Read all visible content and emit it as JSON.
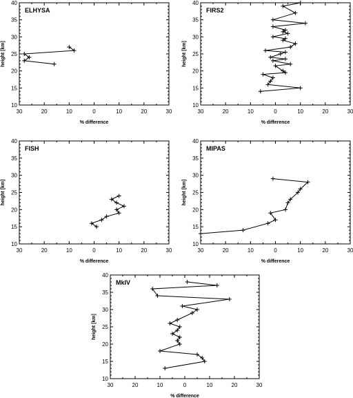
{
  "chart_data": [
    {
      "type": "line",
      "title": "ELHYSA",
      "xlabel": "% difference",
      "ylabel": "height [km]",
      "xlim": [
        -30,
        30
      ],
      "ylim": [
        10,
        40
      ],
      "xticks": [
        -30,
        -20,
        -10,
        0,
        10,
        20,
        30
      ],
      "xtick_labels": [
        "30",
        "20",
        "10",
        "0",
        "10",
        "20",
        "30"
      ],
      "yticks": [
        10,
        15,
        20,
        25,
        30,
        35,
        40
      ],
      "series": [
        {
          "x": [
            -10,
            -8,
            -28,
            -26,
            -28,
            -16
          ],
          "y": [
            27,
            26,
            25,
            24,
            23,
            22
          ]
        }
      ]
    },
    {
      "type": "line",
      "title": "FIRS2",
      "xlabel": "% difference",
      "ylabel": "height [km]",
      "xlim": [
        -30,
        30
      ],
      "ylim": [
        10,
        40
      ],
      "xticks": [
        -30,
        -20,
        -10,
        0,
        10,
        20,
        30
      ],
      "xtick_labels": [
        "30",
        "20",
        "10",
        "0",
        "10",
        "20",
        "30"
      ],
      "yticks": [
        10,
        15,
        20,
        25,
        30,
        35,
        40
      ],
      "series": [
        {
          "x": [
            10,
            3,
            8,
            -1,
            12,
            -1,
            4,
            3,
            5,
            -1,
            4,
            3,
            8,
            6,
            -4,
            4,
            2,
            -2,
            4,
            -1,
            6,
            0,
            3,
            4,
            -5,
            -1,
            -2,
            -3,
            10,
            -6
          ],
          "y": [
            40,
            39,
            37,
            35,
            34,
            33,
            32,
            31.5,
            31,
            30,
            29.5,
            29,
            28,
            27,
            26,
            25.5,
            25,
            24,
            23.5,
            23,
            22,
            21.5,
            20,
            19.5,
            19,
            18,
            17,
            16,
            15,
            14
          ]
        }
      ]
    },
    {
      "type": "line",
      "title": "FISH",
      "xlabel": "% difference",
      "ylabel": "height [km]",
      "xlim": [
        -30,
        30
      ],
      "ylim": [
        10,
        40
      ],
      "xticks": [
        -30,
        -20,
        -10,
        0,
        10,
        20,
        30
      ],
      "xtick_labels": [
        "30",
        "20",
        "10",
        "0",
        "10",
        "20",
        "30"
      ],
      "yticks": [
        10,
        15,
        20,
        25,
        30,
        35,
        40
      ],
      "series": [
        {
          "x": [
            10,
            7,
            9,
            12,
            9,
            10,
            5,
            3,
            -1,
            1
          ],
          "y": [
            24,
            23,
            22,
            21,
            20,
            19,
            18,
            17,
            16,
            15
          ]
        }
      ]
    },
    {
      "type": "line",
      "title": "MIPAS",
      "xlabel": "% difference",
      "ylabel": "height [km]",
      "xlim": [
        -30,
        30
      ],
      "ylim": [
        10,
        40
      ],
      "xticks": [
        -30,
        -20,
        -10,
        0,
        10,
        20,
        30
      ],
      "xtick_labels": [
        "30",
        "20",
        "10",
        "0",
        "10",
        "20",
        "30"
      ],
      "yticks": [
        10,
        15,
        20,
        25,
        30,
        35,
        40
      ],
      "series": [
        {
          "x": [
            -1,
            13,
            10,
            9,
            6,
            5,
            4,
            -2,
            0,
            -3,
            -13,
            -30
          ],
          "y": [
            29,
            28,
            26,
            25,
            23,
            22,
            20,
            19,
            17,
            16,
            14,
            13
          ]
        }
      ]
    },
    {
      "type": "line",
      "title": "MkIV",
      "xlabel": "% difference",
      "ylabel": "height [km]",
      "xlim": [
        -30,
        30
      ],
      "ylim": [
        10,
        40
      ],
      "xticks": [
        -30,
        -20,
        -10,
        0,
        10,
        20,
        30
      ],
      "xtick_labels": [
        "30",
        "20",
        "10",
        "0",
        "10",
        "20",
        "30"
      ],
      "yticks": [
        10,
        15,
        20,
        25,
        30,
        35,
        40
      ],
      "series": [
        {
          "x": [
            1,
            13,
            -13,
            -11,
            18,
            -1,
            5,
            3,
            -3,
            -6,
            -2,
            -3,
            -5,
            -2,
            -3,
            -2,
            -10,
            5,
            7,
            8,
            -8
          ],
          "y": [
            38,
            37,
            36,
            34,
            33,
            31,
            30,
            29,
            27,
            26,
            25,
            24,
            23,
            22,
            21,
            20,
            18,
            17,
            16,
            15,
            13
          ]
        }
      ]
    }
  ]
}
